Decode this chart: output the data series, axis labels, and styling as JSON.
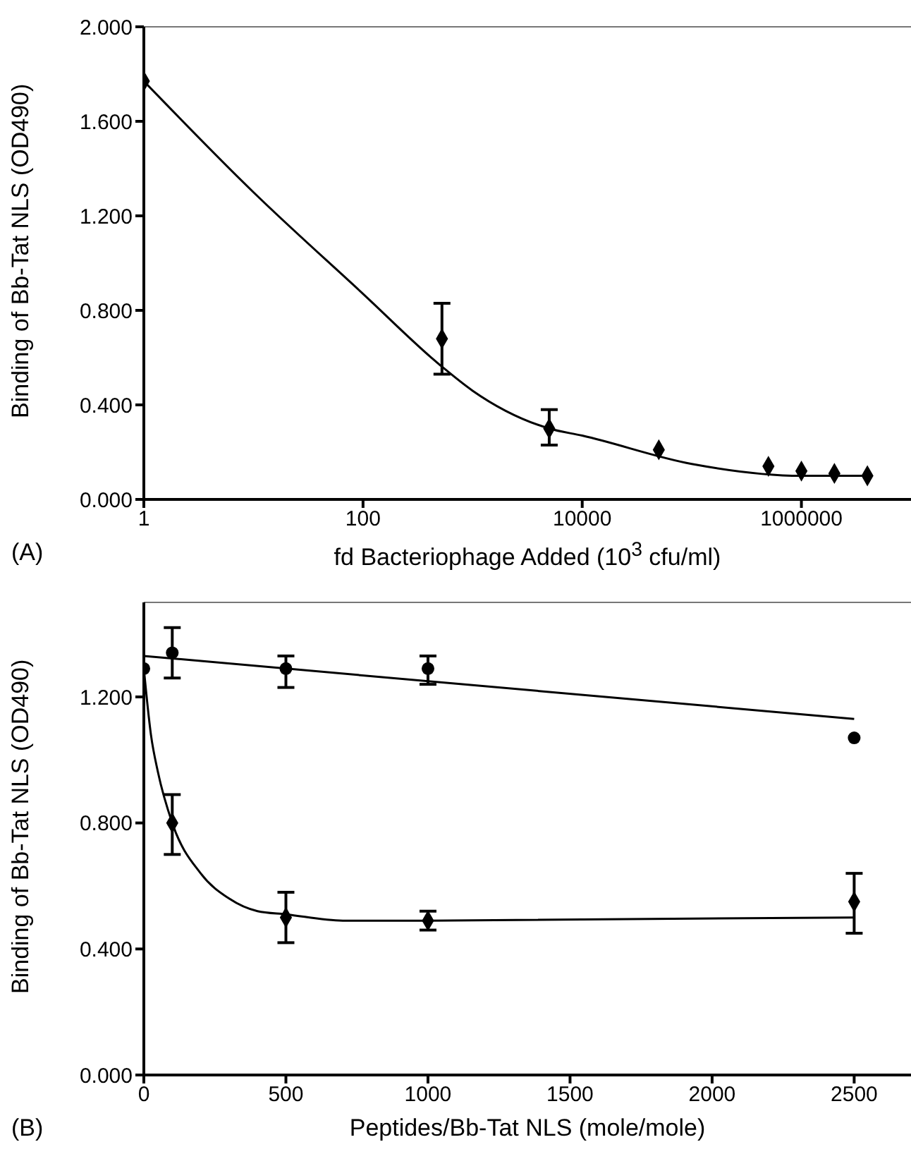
{
  "chart_data": [
    {
      "type": "scatter",
      "xlabel": "fd Bacteriophage Added (10$^{3}$ cfu/ml)",
      "ylabel": "Binding of Bb-Tat NLS (OD490)",
      "annotations": [
        "(A)"
      ],
      "log": "x",
      "xlim": [
        1,
        10000000
      ],
      "xticks": [
        1,
        100,
        10000,
        1000000
      ],
      "ylim": [
        0,
        2
      ],
      "yticks": [
        {
          "value": 0,
          "label": "0.000"
        },
        {
          "value": 0.4,
          "label": "0.400"
        },
        {
          "value": 0.8,
          "label": "0.800"
        },
        {
          "value": 1.2,
          "label": "1.200"
        },
        {
          "value": 1.6,
          "label": "1.600"
        },
        {
          "value": 2,
          "label": "2.000"
        }
      ],
      "series": [
        {
          "type": "line",
          "color": "#000000",
          "marker": "none",
          "x": [
            1,
            10,
            100,
            500,
            1000,
            5000,
            10000,
            100000,
            1000000,
            4000000
          ],
          "values": [
            1.77,
            1.3,
            0.87,
            0.57,
            0.46,
            0.3,
            0.27,
            0.15,
            0.1,
            0.1
          ]
        },
        {
          "color": "#000000",
          "marker": "diamond",
          "x": [
            1,
            525,
            5000,
            50000,
            500000,
            1000000,
            2000000,
            4000000
          ],
          "values": [
            1.77,
            0.68,
            0.3,
            0.21,
            0.14,
            0.12,
            0.11,
            0.1
          ],
          "errors": [
            null,
            [
              0.53,
              0.83
            ],
            [
              0.23,
              0.38
            ],
            null,
            null,
            null,
            null,
            null
          ]
        }
      ]
    },
    {
      "type": "scatter",
      "xlabel": "Peptides/Bb-Tat NLS (mole/mole)",
      "ylabel": "Binding of Bb-Tat NLS (OD490)",
      "annotations": [
        "(B)"
      ],
      "xlim": [
        0,
        2700
      ],
      "xticks": [
        0,
        500,
        1000,
        1500,
        2000,
        2500
      ],
      "ylim": [
        0,
        1.5
      ],
      "yticks": [
        {
          "value": 0,
          "label": "0.000"
        },
        {
          "value": 0.4,
          "label": "0.400"
        },
        {
          "value": 0.8,
          "label": "0.800"
        },
        {
          "value": 1.2,
          "label": "1.200"
        }
      ],
      "series": [
        {
          "type": "line",
          "color": "#000000",
          "marker": "none",
          "x": [
            0,
            2500
          ],
          "values": [
            1.33,
            1.13
          ]
        },
        {
          "type": "line",
          "color": "#000000",
          "marker": "none",
          "x": [
            0,
            25,
            50,
            100,
            200,
            300,
            400,
            500,
            700,
            1000,
            2500
          ],
          "values": [
            1.29,
            1.08,
            0.96,
            0.8,
            0.64,
            0.56,
            0.52,
            0.51,
            0.49,
            0.49,
            0.5
          ]
        },
        {
          "color": "#000000",
          "marker": "circle",
          "x": [
            0,
            100,
            500,
            1000,
            2500
          ],
          "values": [
            1.29,
            1.34,
            1.29,
            1.29,
            1.07
          ],
          "errors": [
            null,
            [
              1.26,
              1.42
            ],
            [
              1.23,
              1.33
            ],
            [
              1.24,
              1.33
            ],
            null
          ]
        },
        {
          "color": "#000000",
          "marker": "diamond",
          "x": [
            100,
            500,
            1000,
            2500
          ],
          "values": [
            0.8,
            0.5,
            0.49,
            0.55
          ],
          "errors": [
            [
              0.7,
              0.89
            ],
            [
              0.42,
              0.58
            ],
            [
              0.46,
              0.52
            ],
            [
              0.45,
              0.64
            ]
          ]
        }
      ]
    }
  ]
}
